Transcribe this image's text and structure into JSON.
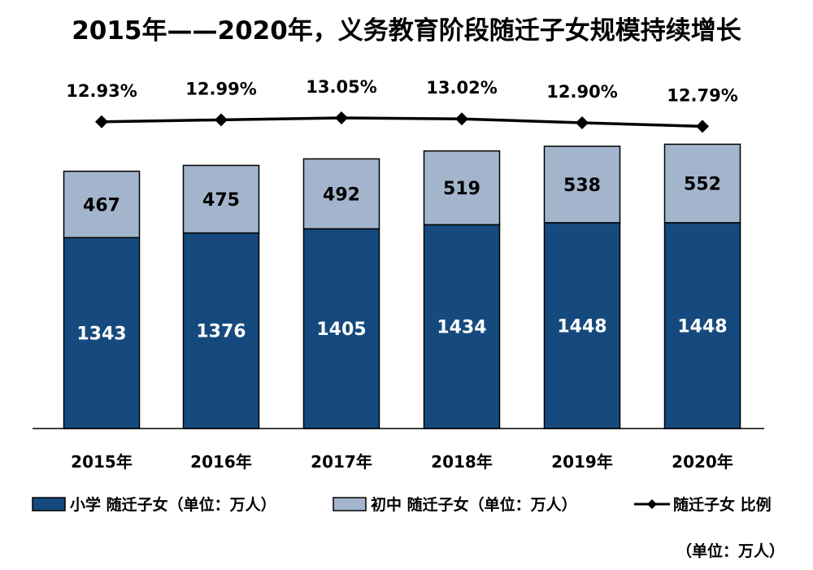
{
  "chart_data": {
    "type": "bar",
    "stacked": true,
    "title": "2015年——2020年，义务教育阶段随迁子女规模持续增长",
    "categories": [
      "2015年",
      "2016年",
      "2017年",
      "2018年",
      "2019年",
      "2020年"
    ],
    "series": [
      {
        "name": "小学 随迁子女（单位：万人）",
        "kind": "bar",
        "color": "#164A7E",
        "label_color": "#ffffff",
        "values": [
          1343,
          1376,
          1405,
          1434,
          1448,
          1448
        ]
      },
      {
        "name": "初中 随迁子女（单位：万人）",
        "kind": "bar",
        "color": "#A3B5CC",
        "label_color": "#000000",
        "values": [
          467,
          475,
          492,
          519,
          538,
          552
        ]
      },
      {
        "name": "随迁子女 比例",
        "kind": "line",
        "color": "#000000",
        "values": [
          12.93,
          12.99,
          13.05,
          13.02,
          12.9,
          12.79
        ],
        "labels": [
          "12.93%",
          "12.99%",
          "13.05%",
          "13.02%",
          "12.90%",
          "12.79%"
        ]
      }
    ],
    "unit_note": "（单位：万人）",
    "legend_position": "bottom",
    "grid": false
  }
}
